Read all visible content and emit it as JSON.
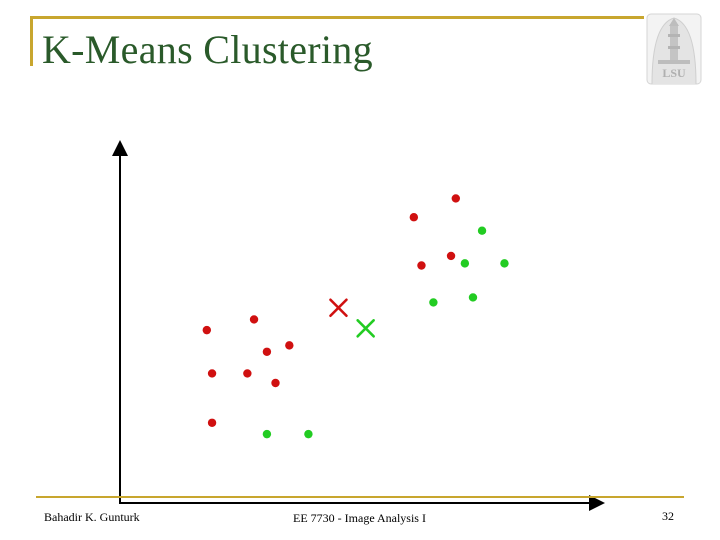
{
  "slide": {
    "title": "K-Means Clustering",
    "logo_text": "LSU",
    "author": "Bahadir K. Gunturk",
    "course": "EE 7730 - Image Analysis I",
    "page_number": "32"
  },
  "colors": {
    "accent_rule": "#c8a62e",
    "title": "#2a5a2a",
    "cluster_red": "#d01010",
    "cluster_green": "#22cc22"
  },
  "chart_data": {
    "type": "scatter",
    "title": "",
    "xlabel": "",
    "ylabel": "",
    "xlim": [
      0,
      100
    ],
    "ylim": [
      0,
      100
    ],
    "grid": false,
    "series": [
      {
        "color": "#d01010",
        "marker": "dot",
        "x": [
          18.2,
          28.1,
          30.8,
          35.5,
          19.3,
          26.7,
          32.6,
          19.3,
          61.6,
          63.2,
          69.4,
          70.4
        ],
        "y": [
          48.7,
          51.7,
          42.6,
          44.4,
          36.5,
          36.5,
          33.8,
          22.6,
          80.5,
          66.9,
          69.6,
          85.8
        ]
      },
      {
        "color": "#22cc22",
        "marker": "dot",
        "x": [
          30.8,
          39.5,
          65.7,
          72.3,
          75.9,
          80.6,
          74.0
        ],
        "y": [
          19.4,
          19.4,
          56.5,
          67.5,
          76.7,
          67.5,
          57.9
        ]
      },
      {
        "color": "#d01010",
        "marker": "x",
        "x": [
          45.8
        ],
        "y": [
          55.0
        ]
      },
      {
        "color": "#22cc22",
        "marker": "x",
        "x": [
          51.5
        ],
        "y": [
          49.2
        ]
      }
    ]
  }
}
